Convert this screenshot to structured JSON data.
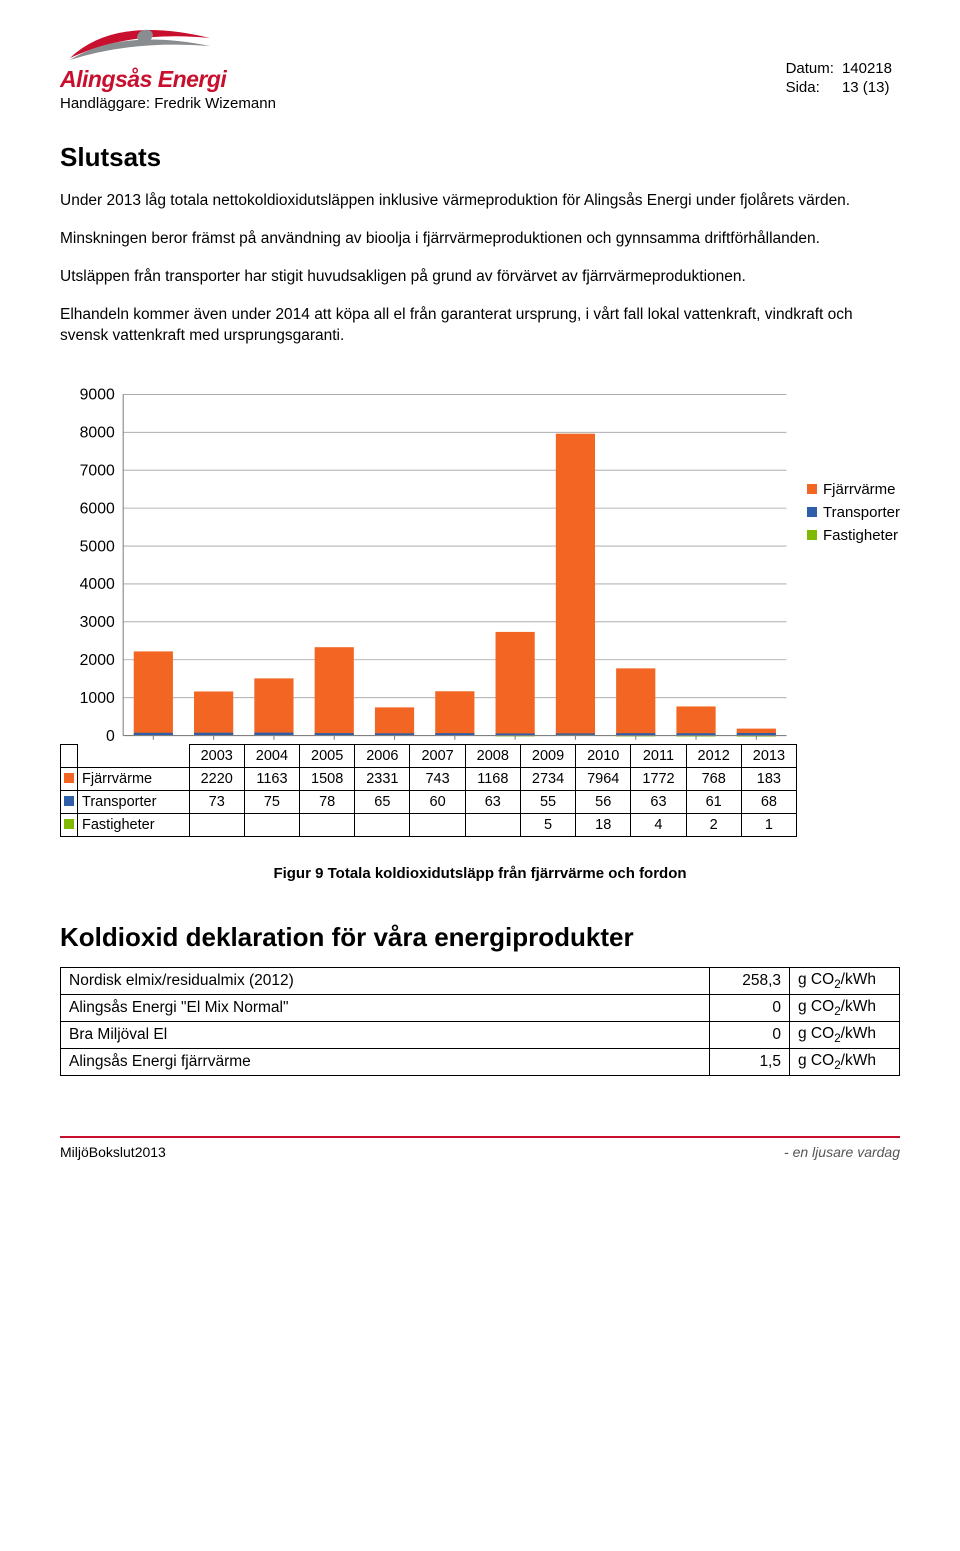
{
  "header": {
    "brand": "Alingsås Energi",
    "handlaggare_label": "Handläggare: ",
    "handlaggare_name": "Fredrik Wizemann",
    "datum_label": "Datum:",
    "datum_value": "140218",
    "sida_label": "Sida:",
    "sida_value": "13 (13)",
    "logo_red": "#c8102e",
    "logo_grey": "#8a8d8f"
  },
  "sections": {
    "slutsats_heading": "Slutsats",
    "p1": "Under 2013 låg totala nettokoldioxidutsläppen inklusive värmeproduktion för Alingsås Energi under fjolårets värden.",
    "p2": "Minskningen beror främst på användning av bioolja i fjärrvärmeproduktionen och gynnsamma driftförhållanden.",
    "p3": "Utsläppen från transporter har stigit huvudsakligen på grund av förvärvet av fjärrvärmeproduktionen.",
    "p4": "Elhandeln kommer även under 2014 att köpa all el från garanterat ursprung, i vårt fall lokal vattenkraft, vindkraft och svensk vattenkraft med ursprungsgaranti."
  },
  "chart": {
    "type": "bar",
    "categories": [
      "2003",
      "2004",
      "2005",
      "2006",
      "2007",
      "2008",
      "2009",
      "2010",
      "2011",
      "2012",
      "2013"
    ],
    "series": [
      {
        "name": "Fjärrvärme",
        "color": "#f26522",
        "values": [
          2220,
          1163,
          1508,
          2331,
          743,
          1168,
          2734,
          7964,
          1772,
          768,
          183
        ]
      },
      {
        "name": "Transporter",
        "color": "#2f5ea8",
        "values": [
          73,
          75,
          78,
          65,
          60,
          63,
          55,
          56,
          63,
          61,
          68
        ]
      },
      {
        "name": "Fastigheter",
        "color": "#7fba00",
        "values": [
          null,
          null,
          null,
          null,
          null,
          null,
          5,
          18,
          4,
          2,
          1
        ]
      }
    ],
    "ylim": [
      0,
      9000
    ],
    "ytick_step": 1000,
    "yticks": [
      "0",
      "1000",
      "2000",
      "3000",
      "4000",
      "5000",
      "6000",
      "7000",
      "8000",
      "9000"
    ],
    "grid_color": "#a0a0a0",
    "background_color": "#ffffff",
    "tick_fontsize": 15,
    "bar_width_ratio": 0.65,
    "plot_border_color": "#808080"
  },
  "figcaption": "Figur 9 Totala koldioxidutsläpp från fjärrvärme och fordon",
  "declaration": {
    "heading": "Koldioxid deklaration för våra energiprodukter",
    "rows": [
      {
        "label": "Nordisk elmix/residualmix (2012)",
        "value": "258,3",
        "unit_prefix": "g CO",
        "unit_suffix": "/kWh"
      },
      {
        "label": "Alingsås Energi \"El Mix Normal\"",
        "value": "0",
        "unit_prefix": "g CO",
        "unit_suffix": "/kWh"
      },
      {
        "label": "Bra Miljöval El",
        "value": "0",
        "unit_prefix": "g CO",
        "unit_suffix": "/kWh"
      },
      {
        "label": "Alingsås Energi fjärrvärme",
        "value": "1,5",
        "unit_prefix": "g CO",
        "unit_suffix": "/kWh"
      }
    ]
  },
  "footer": {
    "left": "MiljöBokslut2013",
    "right": "- en ljusare vardag"
  }
}
